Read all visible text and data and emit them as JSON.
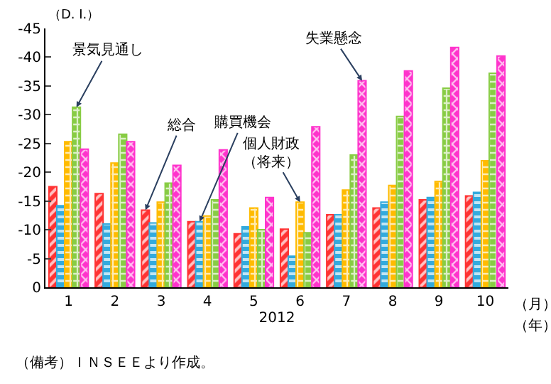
{
  "chart_data": {
    "type": "bar",
    "ylabel": "（D. I.）",
    "xlabel": "2012",
    "categories": [
      "1",
      "2",
      "3",
      "4",
      "5",
      "6",
      "7",
      "8",
      "9",
      "10"
    ],
    "series": [
      {
        "name": "総合",
        "color": "#ff3333",
        "values": [
          -17.5,
          -16.3,
          -13.4,
          -11.4,
          -9.3,
          -10.1,
          -12.6,
          -13.8,
          -15.2,
          -15.9
        ]
      },
      {
        "name": "購買機会",
        "color": "#33aadd",
        "values": [
          -14.2,
          -11.0,
          -11.2,
          -11.4,
          -10.5,
          -5.4,
          -12.6,
          -14.8,
          -15.6,
          -16.5
        ]
      },
      {
        "name": "個人財政（将来）",
        "color": "#ffbb00",
        "values": [
          -25.3,
          -21.6,
          -14.8,
          -12.4,
          -13.8,
          -14.8,
          -16.9,
          -17.7,
          -18.4,
          -22.0
        ]
      },
      {
        "name": "景気見通し",
        "color": "#88cc44",
        "values": [
          -31.3,
          -26.6,
          -18.1,
          -15.2,
          -10.0,
          -9.5,
          -23.0,
          -29.7,
          -34.6,
          -37.2
        ]
      },
      {
        "name": "失業懸念",
        "color": "#ff33cc",
        "values": [
          -24.0,
          -25.3,
          -21.2,
          -23.9,
          -15.6,
          -27.9,
          -35.9,
          -37.6,
          -41.7,
          -40.2
        ]
      }
    ],
    "ylim": [
      0,
      -45
    ],
    "yticks": [
      0,
      -5,
      -10,
      -15,
      -20,
      -25,
      -30,
      -35,
      -40,
      -45
    ],
    "annotations": [
      "（月）",
      "（年）",
      "（備考）ＩＮＳＥＥより作成。"
    ]
  }
}
